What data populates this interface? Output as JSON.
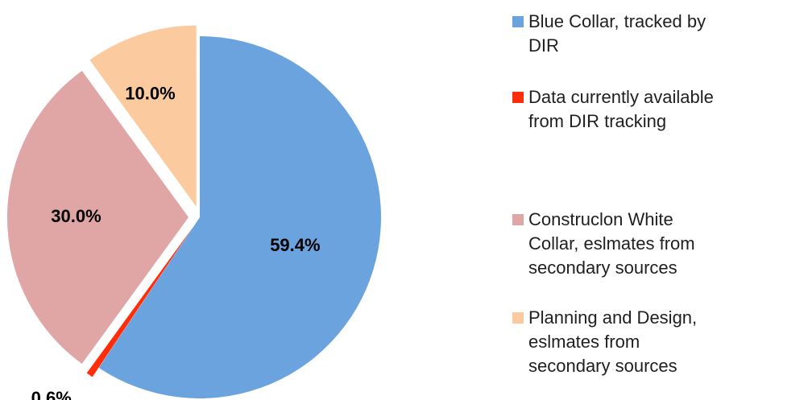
{
  "chart_data": {
    "type": "pie",
    "title": "",
    "slices": [
      {
        "label": "Blue Collar, tracked by\nDIR",
        "value": 59.4,
        "value_label": "59.4%",
        "color": "#6aa3de",
        "exploded": false
      },
      {
        "label": "Data currently available\nfrom DIR tracking",
        "value": 0.6,
        "value_label": "0.6%",
        "color": "#ff2d0a",
        "exploded": true
      },
      {
        "label": "Construclon White\nCollar, eslmates from\nsecondary sources",
        "value": 30.0,
        "value_label": "30.0%",
        "color": "#e0a6a5",
        "exploded": true
      },
      {
        "label": "Planning and Design,\neslmates   from\nsecondary sources",
        "value": 10.0,
        "value_label": "10.0%",
        "color": "#fbcb9f",
        "exploded": true
      }
    ],
    "start_angle_deg": 0,
    "direction": "clockwise",
    "legend_position": "right"
  }
}
